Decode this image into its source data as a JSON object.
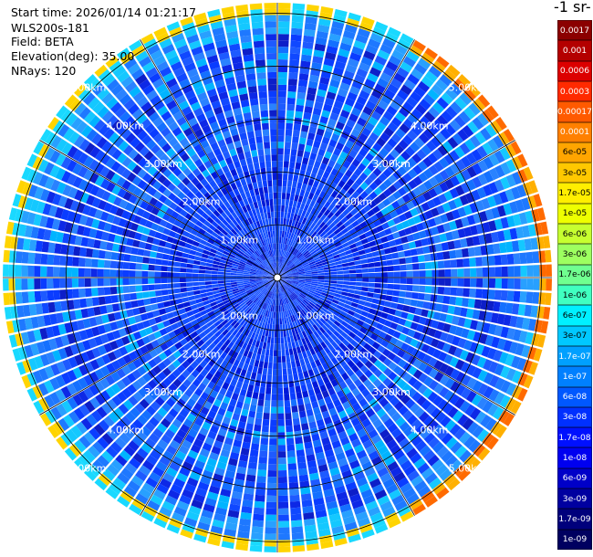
{
  "header": {
    "start_time": "Start time: 2026/01/14 01:21:17",
    "instrument": "WLS200s-181",
    "field": "Field: BETA",
    "elevation": "Elevation(deg): 35.00",
    "nrays": "NRays: 120"
  },
  "unit_label": "-1 sr-",
  "colorbar": {
    "ticks": [
      "0.0017",
      "0.001",
      "0.0006",
      "0.0003",
      "0.00017",
      "0.0001",
      "6e-05",
      "3e-05",
      "1.7e-05",
      "1e-05",
      "6e-06",
      "3e-06",
      "1.7e-06",
      "1e-06",
      "6e-07",
      "3e-07",
      "1.7e-07",
      "1e-07",
      "6e-08",
      "3e-08",
      "1.7e-08",
      "1e-08",
      "6e-09",
      "3e-09",
      "1.7e-09",
      "1e-09"
    ],
    "colors": [
      "#8b0000",
      "#b40000",
      "#dc0000",
      "#ff2a00",
      "#ff5a00",
      "#ff8000",
      "#ffa500",
      "#ffc800",
      "#ffee00",
      "#eeff00",
      "#c6ff30",
      "#9dff60",
      "#70ff90",
      "#40ffc0",
      "#00f0ff",
      "#00c8ff",
      "#00a0ff",
      "#0080ff",
      "#0058ff",
      "#0030ff",
      "#0010ff",
      "#0000f0",
      "#0000c8",
      "#0000a0",
      "#00007c",
      "#000060"
    ]
  },
  "chart_data": {
    "type": "heatmap",
    "projection": "polar PPI",
    "title": "",
    "field": "BETA",
    "elevation_deg": 35.0,
    "nrays": 120,
    "range_rings_km": [
      1,
      2,
      3,
      4,
      5
    ],
    "ring_labels": [
      "1.00km",
      "2.00km",
      "3.00km",
      "4.00km",
      "5.00km"
    ],
    "max_range_km": 5.2,
    "azimuth_spokes_deg": [
      0,
      30,
      60,
      90,
      120,
      150,
      180,
      210,
      240,
      270,
      300,
      330
    ],
    "dominant_level": "3e-08",
    "outer_edge_levels": [
      "1.7e-07",
      "6e-07",
      "3e-06",
      "1.7e-05",
      "0.0001"
    ],
    "colorbar_scale": "log",
    "colorbar_range": [
      1e-09,
      0.0017
    ]
  }
}
